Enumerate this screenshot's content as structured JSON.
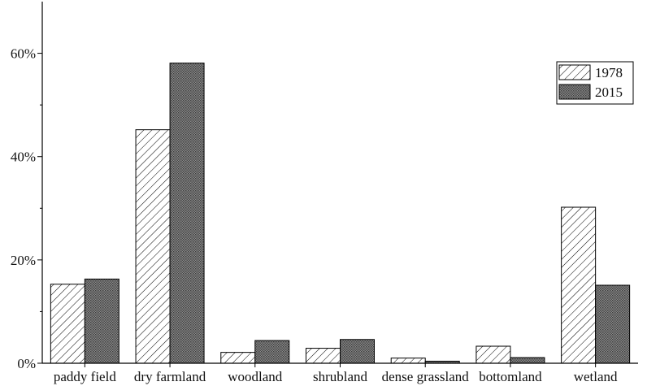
{
  "chart_data": {
    "type": "bar",
    "categories": [
      "paddy field",
      "dry farmland",
      "woodland",
      "shrubland",
      "dense grassland",
      "bottomland",
      "wetland"
    ],
    "series": [
      {
        "name": "1978",
        "values": [
          15.3,
          45.2,
          2.1,
          2.9,
          1.0,
          3.3,
          30.2
        ],
        "fill": "hatch"
      },
      {
        "name": "2015",
        "values": [
          16.3,
          58.1,
          4.4,
          4.6,
          0.4,
          1.1,
          15.1
        ],
        "fill": "dense-gray"
      }
    ],
    "y_ticks": [
      "0%",
      "20%",
      "40%",
      "60%"
    ],
    "y_tick_values": [
      0,
      20,
      40,
      60
    ],
    "ylim": [
      0,
      70
    ],
    "legend_position": "top-right",
    "grid": false,
    "colors": {
      "axis": "#000000",
      "bar_outline": "#000000",
      "dense_fill": "#6b6b6b",
      "hatch_stroke": "#000000"
    }
  }
}
